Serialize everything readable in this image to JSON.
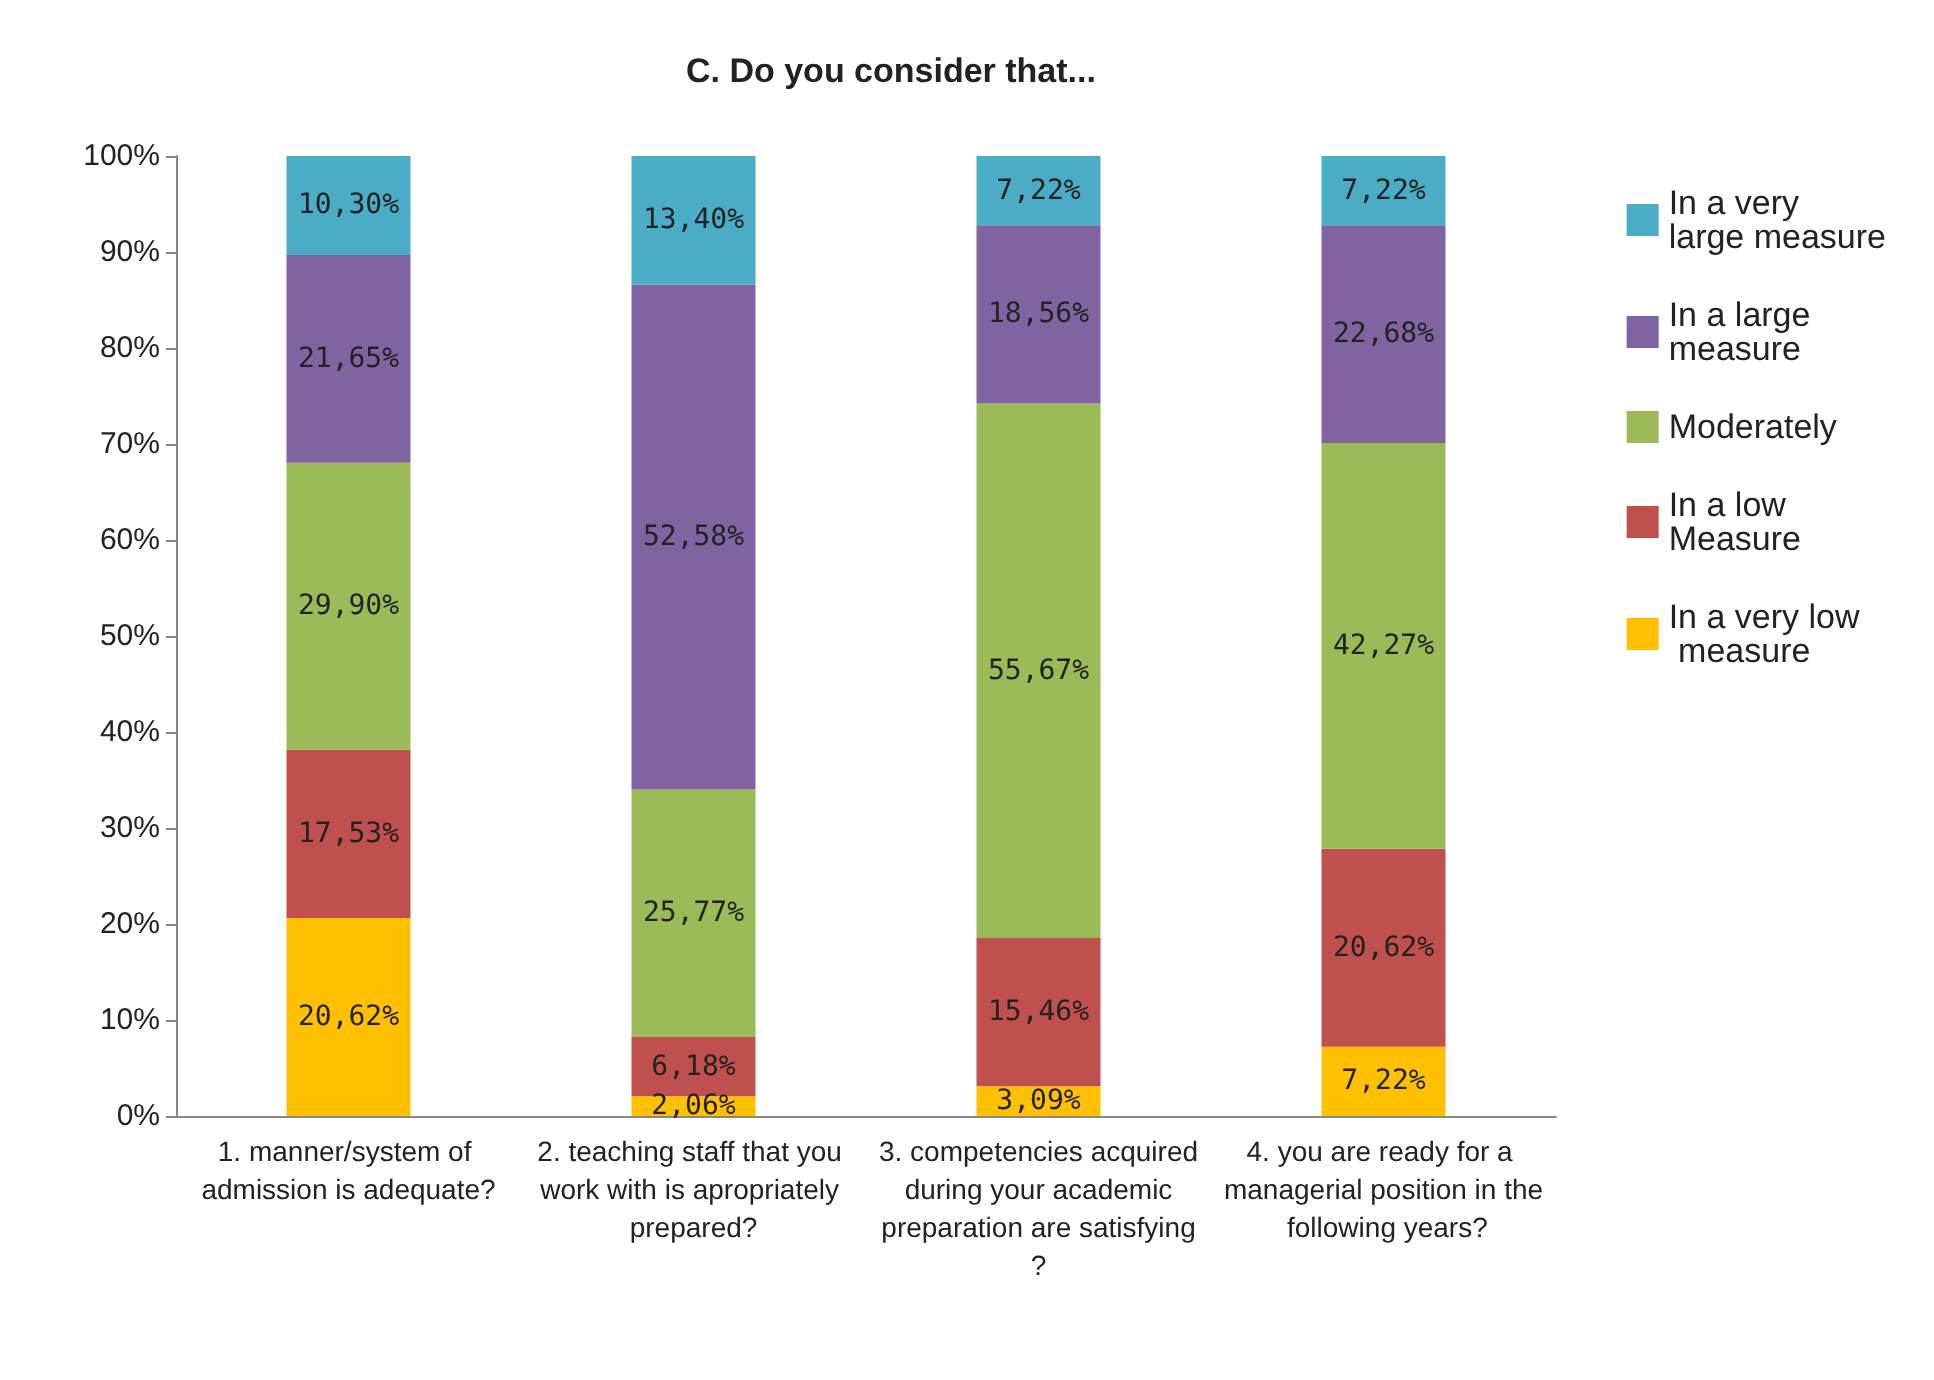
{
  "chart_data": {
    "type": "bar",
    "stacked": true,
    "title": "C. Do you consider that...",
    "categories": [
      "1. manner/system of admission is adequate?",
      "2. teaching staff that you work with is apropriately prepared?",
      "3. competencies acquired during your academic preparation are satisfying?",
      "4. you are ready for a managerial position in the following years?"
    ],
    "series": [
      {
        "name": "In a very low measure",
        "color": "#ffc000",
        "values": [
          20.62,
          2.06,
          3.09,
          7.22
        ],
        "value_labels": [
          "20,62%",
          "2,06%",
          "3,09%",
          "7,22%"
        ]
      },
      {
        "name": "In a low Measure",
        "color": "#c0504d",
        "values": [
          17.53,
          6.18,
          15.46,
          20.62
        ],
        "value_labels": [
          "17,53%",
          "6,18%",
          "15,46%",
          "20,62%"
        ]
      },
      {
        "name": "Moderately",
        "color": "#9bbb59",
        "values": [
          29.9,
          25.77,
          55.67,
          42.27
        ],
        "value_labels": [
          "29,90%",
          "25,77%",
          "55,67%",
          "42,27%"
        ]
      },
      {
        "name": "In a large measure",
        "color": "#8064a2",
        "values": [
          21.65,
          52.58,
          18.56,
          22.68
        ],
        "value_labels": [
          "21,65%",
          "52,58%",
          "18,56%",
          "22,68%"
        ]
      },
      {
        "name": "In a very large measure",
        "color": "#4bacc6",
        "values": [
          10.3,
          13.4,
          7.22,
          7.22
        ],
        "value_labels": [
          "10,30%",
          "13,40%",
          "7,22%",
          "7,22%"
        ]
      }
    ],
    "ylim": [
      0,
      100
    ],
    "yticks": [
      {
        "value": 0,
        "label": "0%"
      },
      {
        "value": 10,
        "label": "10%"
      },
      {
        "value": 20,
        "label": "20%"
      },
      {
        "value": 30,
        "label": "30%"
      },
      {
        "value": 40,
        "label": "40%"
      },
      {
        "value": 50,
        "label": "50%"
      },
      {
        "value": 60,
        "label": "60%"
      },
      {
        "value": 70,
        "label": "70%"
      },
      {
        "value": 80,
        "label": "80%"
      },
      {
        "value": 90,
        "label": "90%"
      },
      {
        "value": 100,
        "label": "100%"
      }
    ],
    "legend": "right"
  }
}
